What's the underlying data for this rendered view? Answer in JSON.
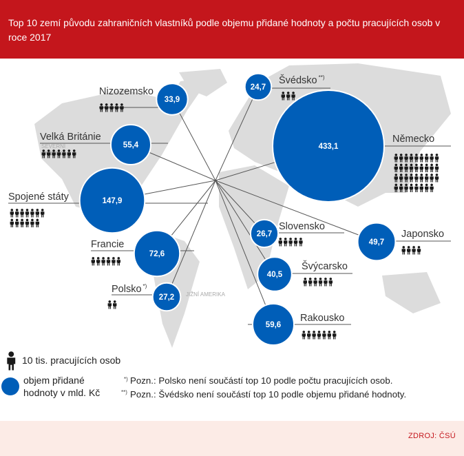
{
  "header": {
    "title": "Top 10 zemí původu zahraničních vlastníků podle objemu přidané hodnoty a počtu pracujících osob v roce 2017"
  },
  "chart_data": {
    "type": "bubble-map",
    "title": "Top 10 zemí původu zahraničních vlastníků podle objemu přidané hodnoty a počtu pracujících osob v roce 2017",
    "countries": [
      {
        "name": "Nizozemsko",
        "value": 33.9,
        "value_label": "33,9",
        "workers_icons": 5
      },
      {
        "name": "Velká Británie",
        "value": 55.4,
        "value_label": "55,4",
        "workers_icons": 7
      },
      {
        "name": "Spojené státy",
        "value": 147.9,
        "value_label": "147,9",
        "workers_icons": 13
      },
      {
        "name": "Francie",
        "value": 72.6,
        "value_label": "72,6",
        "workers_icons": 6
      },
      {
        "name": "Polsko",
        "value": 27.2,
        "value_label": "27,2",
        "workers_icons": 2,
        "note_marker": "*)"
      },
      {
        "name": "Švédsko",
        "value": 24.7,
        "value_label": "24,7",
        "workers_icons": 3,
        "note_marker": "**)"
      },
      {
        "name": "Německo",
        "value": 433.1,
        "value_label": "433,1",
        "workers_icons": 35
      },
      {
        "name": "Slovensko",
        "value": 26.7,
        "value_label": "26,7",
        "workers_icons": 5
      },
      {
        "name": "Japonsko",
        "value": 49.7,
        "value_label": "49,7",
        "workers_icons": 4
      },
      {
        "name": "Švýcarsko",
        "value": 40.5,
        "value_label": "40,5",
        "workers_icons": 6
      },
      {
        "name": "Rakousko",
        "value": 59.6,
        "value_label": "59,6",
        "workers_icons": 7
      }
    ],
    "legend": {
      "person_label": "10 tis. pracujících osob",
      "bubble_label_line1": "objem přidané",
      "bubble_label_line2": "hodnoty v mld. Kč"
    },
    "notes": [
      {
        "marker": "*)",
        "text": "Pozn.: Polsko není součástí top 10 podle počtu pracujících osob."
      },
      {
        "marker": "**)",
        "text": "Pozn.: Švédsko není součástí top 10 podle objemu přidané hodnoty."
      }
    ],
    "colors": {
      "bubble": "#005eb8",
      "map": "#dcdcdc",
      "header": "#c4161c",
      "footer": "#fcebe6"
    }
  },
  "footer": {
    "source": "ZDROJ: ČSÚ"
  }
}
